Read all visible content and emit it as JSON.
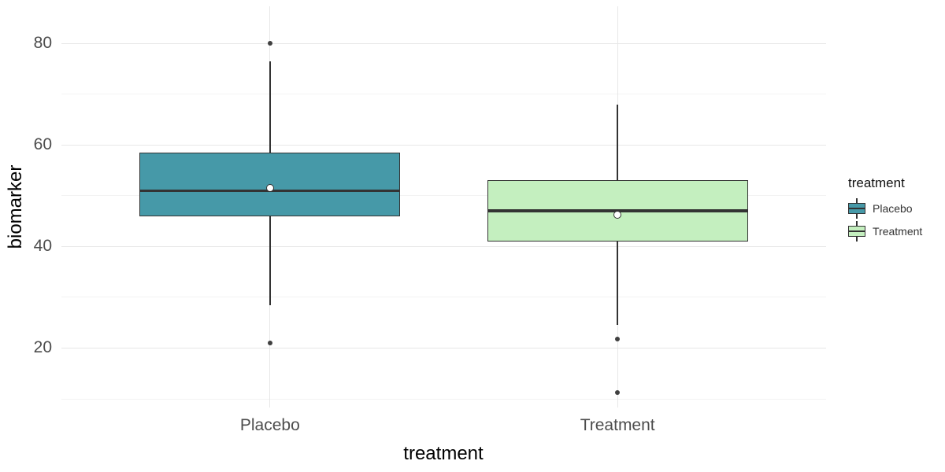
{
  "chart_data": {
    "type": "boxplot",
    "title": "",
    "xlabel": "treatment",
    "ylabel": "biomarker",
    "categories": [
      "Placebo",
      "Treatment"
    ],
    "y_axis": {
      "major_ticks": [
        20,
        40,
        60,
        80
      ],
      "minor_ticks": [
        10,
        30,
        50,
        70
      ],
      "range": [
        8.3,
        87.3
      ]
    },
    "grid": true,
    "legend": {
      "title": "treatment",
      "position": "right",
      "items": [
        {
          "label": "Placebo",
          "fill": "#4699a8"
        },
        {
          "label": "Treatment",
          "fill": "#c4efbf"
        }
      ]
    },
    "series": [
      {
        "name": "Placebo",
        "fill": "#4699a8",
        "stats": {
          "whisker_low": 28.5,
          "q1": 46,
          "median": 51,
          "q3": 58.5,
          "whisker_high": 76.5,
          "mean": 51.5,
          "outliers": [
            80,
            21
          ]
        }
      },
      {
        "name": "Treatment",
        "fill": "#c4efbf",
        "stats": {
          "whisker_low": 24.5,
          "q1": 41,
          "median": 47,
          "q3": 53,
          "whisker_high": 68,
          "mean": 46.3,
          "outliers": [
            21.7,
            11.2
          ]
        }
      }
    ],
    "stroke_color": "#333333",
    "outlier_color": "#404040",
    "mean_marker": "white-circle"
  }
}
